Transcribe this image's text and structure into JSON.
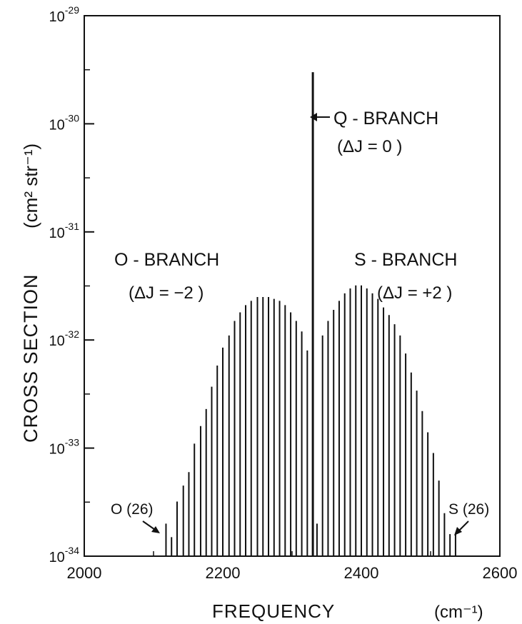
{
  "chart_data": {
    "type": "bar",
    "yscale": "log",
    "ylim": [
      1e-34,
      1e-29
    ],
    "xlim": [
      2000,
      2600
    ],
    "grid": false,
    "xlabel": "FREQUENCY",
    "xunit": "(cm⁻¹)",
    "ylabel": "CROSS SECTION",
    "yunit": "(cm² str⁻¹)",
    "x_ticks": [
      "2000",
      "2200",
      "2400",
      "2600"
    ],
    "y_tick_exponents": [
      "-29",
      "-30",
      "-31",
      "-32",
      "-33",
      "-34"
    ],
    "annotations": {
      "q_branch": {
        "label": "Q - BRANCH",
        "rule": "(ΔJ = 0 )"
      },
      "o_branch": {
        "label": "O - BRANCH",
        "rule": "(ΔJ = −2 )"
      },
      "s_branch": {
        "label": "S - BRANCH",
        "rule": "(ΔJ = +2 )"
      },
      "o_end": "O (26)",
      "s_end": "S (26)"
    },
    "q_branch_line": {
      "x": 2330,
      "y": 3e-30
    },
    "series": [
      {
        "x": [
          2118,
          2126,
          2134,
          2143,
          2151,
          2159,
          2168,
          2176,
          2184,
          2192,
          2200,
          2209,
          2217,
          2225,
          2233,
          2241,
          2250,
          2258,
          2266,
          2274,
          2282,
          2290,
          2298,
          2306,
          2314,
          2322
        ],
        "y": [
          2e-34,
          1.5e-34,
          3.2e-34,
          4.5e-34,
          6e-34,
          1.1e-33,
          1.6e-33,
          2.3e-33,
          3.7e-33,
          5.8e-33,
          8.5e-33,
          1.1e-32,
          1.5e-32,
          1.8e-32,
          2.1e-32,
          2.3e-32,
          2.5e-32,
          2.5e-32,
          2.5e-32,
          2.4e-32,
          2.3e-32,
          2.1e-32,
          1.8e-32,
          1.5e-32,
          1.2e-32,
          8e-33
        ]
      },
      {
        "x": [
          2336,
          2344,
          2352,
          2360,
          2368,
          2376,
          2384,
          2392,
          2400,
          2408,
          2416,
          2424,
          2432,
          2440,
          2448,
          2456,
          2464,
          2472,
          2480,
          2488,
          2496,
          2504,
          2512,
          2520,
          2528,
          2536
        ],
        "y": [
          2e-34,
          1.1e-32,
          1.5e-32,
          1.9e-32,
          2.3e-32,
          2.7e-32,
          3e-32,
          3.2e-32,
          3.2e-32,
          3e-32,
          2.7e-32,
          2.4e-32,
          2e-32,
          1.7e-32,
          1.4e-32,
          1.1e-32,
          7.5e-33,
          5e-33,
          3.4e-33,
          2.2e-33,
          1.4e-33,
          9e-34,
          5e-34,
          2.5e-34,
          1.6e-34,
          1.6e-34
        ]
      }
    ]
  }
}
